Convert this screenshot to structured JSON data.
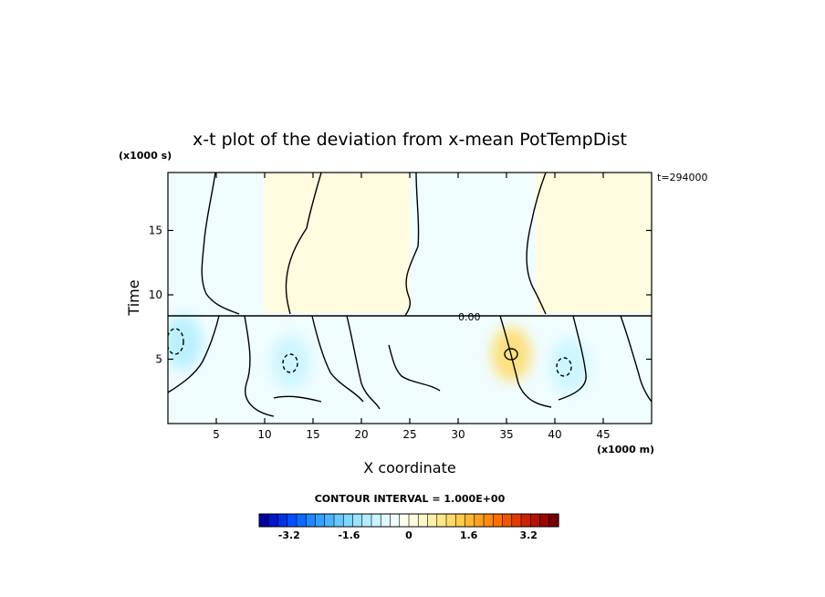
{
  "chart_data": {
    "type": "heatmap",
    "title": "x-t plot of the deviation from x-mean PotTempDist",
    "y_unit": "(x1000 s)",
    "x_unit": "(x1000 m)",
    "ylabel": "Time",
    "xlabel": "X coordinate",
    "annotation_time": "t=294000",
    "contour_label": "0.00",
    "contour_interval_text": "CONTOUR INTERVAL = 1.000E+00",
    "xlim": [
      0,
      50
    ],
    "ylim": [
      0,
      19.5
    ],
    "x_ticks": [
      5,
      10,
      15,
      20,
      25,
      30,
      35,
      40,
      45
    ],
    "x_tick_labels": [
      "5",
      "10",
      "15",
      "20",
      "25",
      "30",
      "35",
      "40",
      "45"
    ],
    "y_ticks": [
      5,
      10,
      15
    ],
    "y_tick_labels": [
      "5",
      "10",
      "15"
    ],
    "colorbar": {
      "range": [
        -4,
        4
      ],
      "ticks": [
        -3.2,
        -1.6,
        0,
        1.6,
        3.2
      ],
      "tick_labels": [
        "-3.2",
        "-1.6",
        "0",
        "1.6",
        "3.2"
      ],
      "colors": [
        "#0000a0",
        "#0018c8",
        "#0033e6",
        "#0050ff",
        "#0a6cff",
        "#1e88ff",
        "#33a0ff",
        "#4cb4ff",
        "#66c8ff",
        "#80d8ff",
        "#99e4ff",
        "#b2eeff",
        "#c8f5ff",
        "#ddfaff",
        "#f0fdff",
        "#fffff0",
        "#fffce0",
        "#fff8c8",
        "#fff2a8",
        "#ffe888",
        "#ffdc68",
        "#ffcc4c",
        "#ffb833",
        "#ffa020",
        "#ff8a10",
        "#ff7000",
        "#f05500",
        "#e03c00",
        "#cc2400",
        "#b41400",
        "#960800",
        "#780000"
      ]
    },
    "regions": [
      {
        "name": "upper-left-cool",
        "value": -0.3,
        "x": [
          0,
          10
        ],
        "y": [
          8.6,
          19.5
        ]
      },
      {
        "name": "upper-center-warm",
        "value": 0.2,
        "x": [
          10,
          25
        ],
        "y": [
          8.6,
          19.5
        ]
      },
      {
        "name": "upper-center-cool",
        "value": -0.3,
        "x": [
          25,
          38
        ],
        "y": [
          8.6,
          19.5
        ]
      },
      {
        "name": "upper-right-warm",
        "value": 0.2,
        "x": [
          38,
          50
        ],
        "y": [
          8.6,
          19.5
        ]
      },
      {
        "name": "lower-cool-band",
        "value": -0.5,
        "x": [
          0,
          50
        ],
        "y": [
          0,
          8.6
        ]
      }
    ],
    "extrema": [
      {
        "type": "min",
        "x": 1.5,
        "y": 6.3,
        "value": -1.2
      },
      {
        "type": "min",
        "x": 12.7,
        "y": 4.8,
        "value": -1.0
      },
      {
        "type": "min",
        "x": 41.5,
        "y": 4.5,
        "value": -1.0
      },
      {
        "type": "max",
        "x": 35.5,
        "y": 5.4,
        "value": 1.0
      }
    ]
  }
}
